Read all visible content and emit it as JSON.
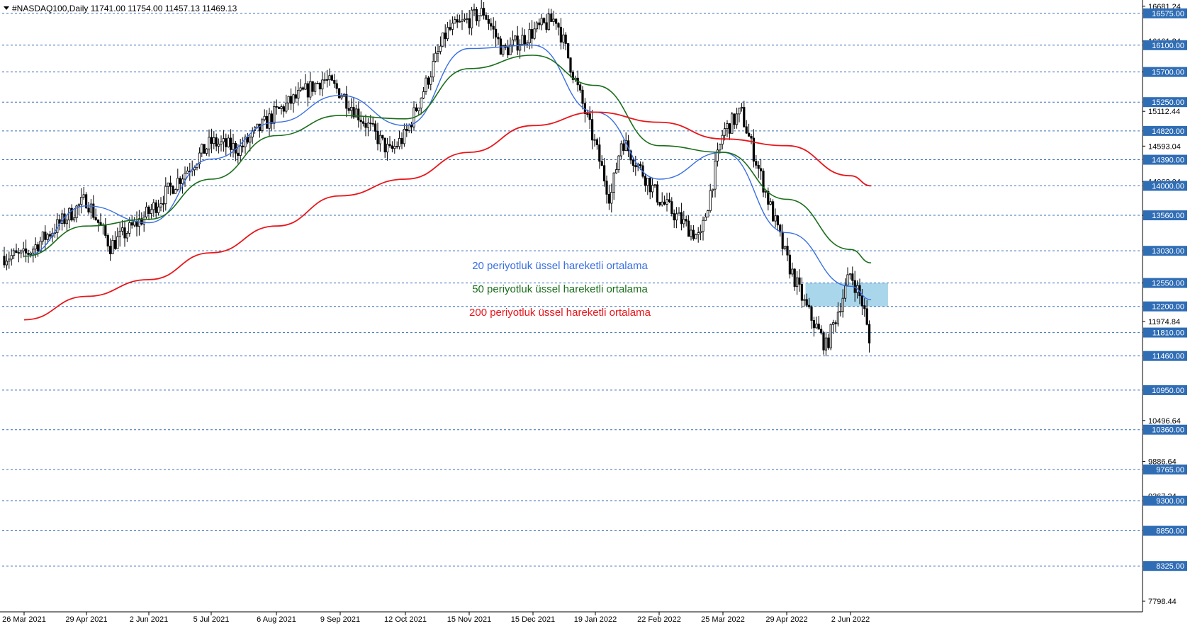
{
  "header": {
    "text": "#NASDAQ100,Daily  11741.00 11754.00 11457.13 11469.13"
  },
  "colors": {
    "ema20": "#3a6fe0",
    "ema50": "#1a6e1a",
    "ema200": "#e8161b",
    "level_line": "#3a6fb5",
    "level_label_bg": "#2f6db5",
    "zone": "#a9d6ea"
  },
  "chart_data": {
    "type": "candlestick",
    "instrument": "#NASDAQ100",
    "timeframe": "Daily",
    "ohlc_last": {
      "open": 11741.0,
      "high": 11754.0,
      "low": 11457.13,
      "close": 11469.13
    },
    "y_range": [
      7640,
      16690
    ],
    "price_scale_labels": [
      "16681.24",
      "16161.84",
      "15700.01",
      "15112.44",
      "14593.04",
      "14062.04",
      "13560.00",
      "12550.00",
      "11974.84",
      "10496.64",
      "9886.64",
      "9367.24",
      "7798.44"
    ],
    "levels": [
      "16575.00",
      "16100.00",
      "15700.00",
      "15250.00",
      "14820.00",
      "14390.00",
      "14000.00",
      "13560.00",
      "13030.00",
      "12550.00",
      "12200.00",
      "11810.00",
      "11460.00",
      "10950.00",
      "10360.00",
      "9765.00",
      "9300.00",
      "8850.00",
      "8325.00"
    ],
    "x_labels": [
      "26 Mar 2021",
      "29 Apr 2021",
      "2 Jun 2021",
      "5 Jul 2021",
      "6 Aug 2021",
      "9 Sep 2021",
      "12 Oct 2021",
      "15 Nov 2021",
      "15 Dec 2021",
      "19 Jan 2022",
      "22 Feb 2022",
      "25 Mar 2022",
      "29 Apr 2022",
      "2 Jun 2022"
    ],
    "price_path": [
      [
        "26 Mar 2021",
        12950
      ],
      [
        "29 Apr 2021",
        13800
      ],
      [
        "12 May 2021",
        13100
      ],
      [
        "2 Jun 2021",
        13600
      ],
      [
        "5 Jul 2021",
        14650
      ],
      [
        "19 Jul 2021",
        14550
      ],
      [
        "6 Aug 2021",
        15100
      ],
      [
        "31 Aug 2021",
        15600
      ],
      [
        "9 Sep 2021",
        15400
      ],
      [
        "4 Oct 2021",
        14500
      ],
      [
        "12 Oct 2021",
        14750
      ],
      [
        "3 Nov 2021",
        16300
      ],
      [
        "22 Nov 2021",
        16600
      ],
      [
        "1 Dec 2021",
        16000
      ],
      [
        "15 Dec 2021",
        16300
      ],
      [
        "28 Dec 2021",
        16500
      ],
      [
        "19 Jan 2022",
        14600
      ],
      [
        "27 Jan 2022",
        13800
      ],
      [
        "2 Feb 2022",
        14700
      ],
      [
        "22 Feb 2022",
        13800
      ],
      [
        "14 Mar 2022",
        13200
      ],
      [
        "25 Mar 2022",
        14800
      ],
      [
        "4 Apr 2022",
        15100
      ],
      [
        "13 Apr 2022",
        14300
      ],
      [
        "29 Apr 2022",
        12900
      ],
      [
        "9 May 2022",
        12200
      ],
      [
        "20 May 2022",
        11600
      ],
      [
        "2 Jun 2022",
        12700
      ],
      [
        "9 Jun 2022",
        12200
      ],
      [
        "13 Jun 2022",
        11470
      ]
    ],
    "series": [
      {
        "name": "20 periyotluk üssel hareketli ortalama",
        "values": [
          [
            "26 Mar 2021",
            12950
          ],
          [
            "29 Apr 2021",
            13700
          ],
          [
            "2 Jun 2021",
            13450
          ],
          [
            "5 Jul 2021",
            14400
          ],
          [
            "6 Aug 2021",
            14950
          ],
          [
            "9 Sep 2021",
            15350
          ],
          [
            "12 Oct 2021",
            14900
          ],
          [
            "15 Nov 2021",
            16050
          ],
          [
            "15 Dec 2021",
            16100
          ],
          [
            "19 Jan 2022",
            15100
          ],
          [
            "22 Feb 2022",
            14100
          ],
          [
            "25 Mar 2022",
            14500
          ],
          [
            "29 Apr 2022",
            13300
          ],
          [
            "2 Jun 2022",
            12500
          ],
          [
            "13 Jun 2022",
            12300
          ]
        ]
      },
      {
        "name": "50 periyotluk üssel hareketli ortalama",
        "values": [
          [
            "26 Mar 2021",
            12950
          ],
          [
            "29 Apr 2021",
            13400
          ],
          [
            "2 Jun 2021",
            13500
          ],
          [
            "5 Jul 2021",
            14100
          ],
          [
            "6 Aug 2021",
            14750
          ],
          [
            "9 Sep 2021",
            15050
          ],
          [
            "12 Oct 2021",
            15000
          ],
          [
            "15 Nov 2021",
            15750
          ],
          [
            "15 Dec 2021",
            15950
          ],
          [
            "19 Jan 2022",
            15500
          ],
          [
            "22 Feb 2022",
            14600
          ],
          [
            "25 Mar 2022",
            14500
          ],
          [
            "29 Apr 2022",
            13800
          ],
          [
            "2 Jun 2022",
            13050
          ],
          [
            "13 Jun 2022",
            12850
          ]
        ]
      },
      {
        "name": "200 periyotluk üssel hareketli ortalama",
        "values": [
          [
            "26 Mar 2021",
            12000
          ],
          [
            "29 Apr 2021",
            12350
          ],
          [
            "2 Jun 2021",
            12600
          ],
          [
            "5 Jul 2021",
            13000
          ],
          [
            "6 Aug 2021",
            13400
          ],
          [
            "9 Sep 2021",
            13850
          ],
          [
            "12 Oct 2021",
            14100
          ],
          [
            "15 Nov 2021",
            14500
          ],
          [
            "15 Dec 2021",
            14900
          ],
          [
            "19 Jan 2022",
            15100
          ],
          [
            "22 Feb 2022",
            14950
          ],
          [
            "25 Mar 2022",
            14700
          ],
          [
            "29 Apr 2022",
            14600
          ],
          [
            "2 Jun 2022",
            14150
          ],
          [
            "13 Jun 2022",
            14000
          ]
        ]
      }
    ],
    "zone": {
      "from": 12200,
      "to": 12550,
      "start": "9 May 2022",
      "end": "22 Jun 2022"
    }
  }
}
